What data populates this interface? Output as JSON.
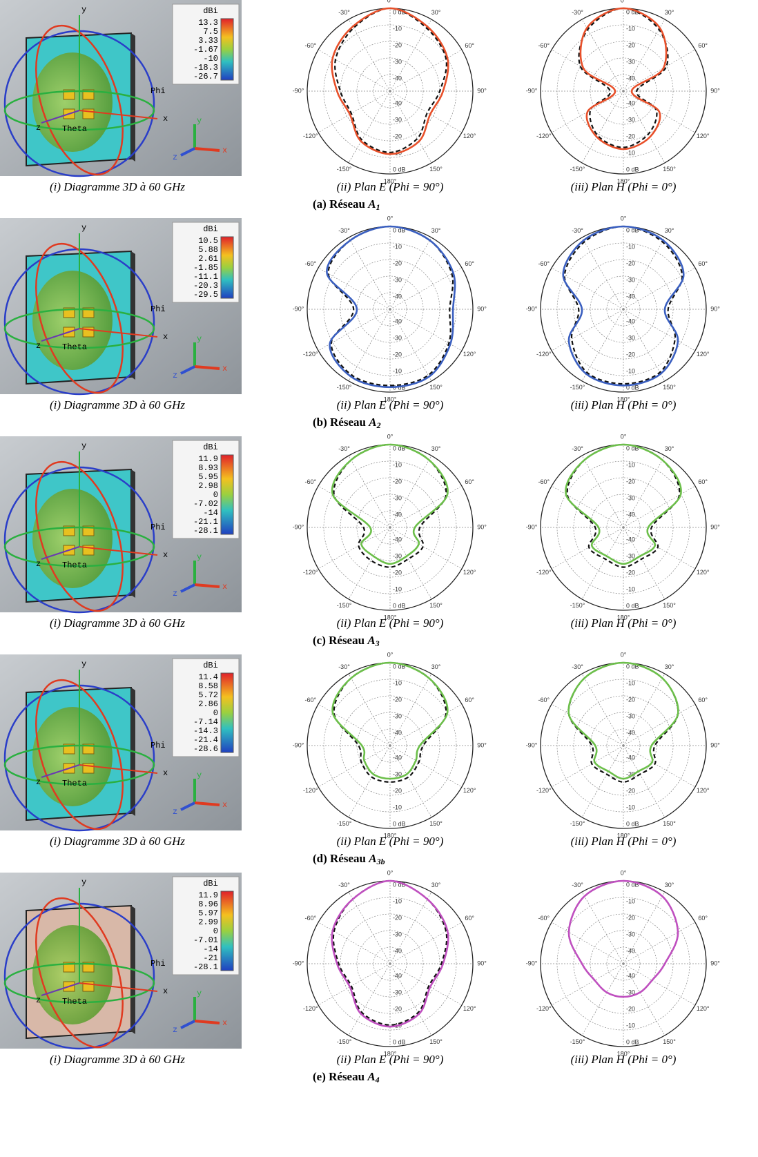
{
  "captions": [
    "(i) Diagramme 3D à 60 GHz",
    "(ii) Plan E (Phi = 90°)",
    "(iii) Plan H (Phi = 0°)"
  ],
  "colorbar_unit": "dBi",
  "axis_labels": {
    "x": "x",
    "y": "y",
    "z": "z",
    "phi": "Phi",
    "theta": "Theta"
  },
  "polar": {
    "rlim": [
      -50,
      0
    ],
    "rticks": [
      {
        "value": 0,
        "label": "0 dB"
      },
      -10,
      -20,
      -30,
      -40
    ],
    "angle_ticks": [
      {
        "value": 0,
        "label": "0°"
      },
      {
        "value": 30,
        "label": "30°"
      },
      {
        "value": 60,
        "label": "60°"
      },
      {
        "value": 90,
        "label": "90°"
      },
      {
        "value": 120,
        "label": "120°"
      },
      {
        "value": 150,
        "label": "150°"
      },
      {
        "value": 180,
        "label": "180°"
      },
      {
        "value": 210,
        "label": "-150°"
      },
      {
        "value": 240,
        "label": "-120°"
      },
      {
        "value": 270,
        "label": "-90°"
      },
      {
        "value": 300,
        "label": "-60°"
      },
      {
        "value": 330,
        "label": "-30°"
      }
    ]
  },
  "rows": [
    {
      "letter": "(a) Réseau",
      "name": "A",
      "sub": "1",
      "plane_color": "#3fc6c8",
      "color": "#e8502a",
      "colorbar": [
        "13.3",
        "7.5",
        "3.33",
        "-1.67",
        "-10",
        "-18.3",
        "-26.7"
      ],
      "e_plane": {
        "sim": [
          0,
          -5,
          -10,
          -18,
          -22,
          -15,
          -12,
          -15,
          -22,
          -18,
          -10,
          -5
        ],
        "meas": [
          0,
          -6,
          -11,
          -20,
          -24,
          -17,
          -13,
          -16,
          -23,
          -20,
          -12,
          -6
        ]
      },
      "h_plane": {
        "sim": [
          0,
          -6,
          -22,
          -45,
          -25,
          -18,
          -15,
          -18,
          -25,
          -45,
          -22,
          -6
        ],
        "meas": [
          0,
          -7,
          -20,
          -42,
          -27,
          -20,
          -16,
          -19,
          -27,
          -42,
          -20,
          -7
        ]
      }
    },
    {
      "letter": "(b) Réseau",
      "name": "A",
      "sub": "2",
      "plane_color": "#3fc6c8",
      "color": "#3a5fc0",
      "colorbar": [
        "10.5",
        "5.88",
        "2.61",
        "-1.85",
        "-11.1",
        "-20.3",
        "-29.5"
      ],
      "e_plane": {
        "sim": [
          0,
          -2,
          -6,
          -12,
          -8,
          -3,
          -3,
          -3,
          -8,
          -30,
          -6,
          -2
        ],
        "meas": [
          0,
          -2,
          -7,
          -14,
          -9,
          -4,
          -4,
          -4,
          -9,
          -28,
          -7,
          -2
        ]
      },
      "h_plane": {
        "sim": [
          0,
          -2,
          -8,
          -25,
          -12,
          -5,
          -4,
          -5,
          -12,
          -25,
          -8,
          -2
        ],
        "meas": [
          0,
          -3,
          -9,
          -23,
          -14,
          -6,
          -5,
          -6,
          -14,
          -23,
          -9,
          -3
        ]
      }
    },
    {
      "letter": "(c) Réseau",
      "name": "A",
      "sub": "3",
      "plane_color": "#3fc6c8",
      "color": "#6cbf4a",
      "colorbar": [
        "11.9",
        "8.93",
        "5.95",
        "2.98",
        "0",
        "-7.02",
        "-14",
        "-21.1",
        "-28.1"
      ],
      "e_plane": {
        "sim": [
          0,
          -3,
          -10,
          -35,
          -30,
          -30,
          -28,
          -30,
          -30,
          -38,
          -10,
          -3
        ],
        "meas": [
          0,
          -3,
          -11,
          -32,
          -27,
          -28,
          -26,
          -27,
          -28,
          -34,
          -11,
          -3
        ]
      },
      "h_plane": {
        "sim": [
          0,
          -3,
          -10,
          -35,
          -28,
          -30,
          -28,
          -30,
          -28,
          -35,
          -10,
          -3
        ],
        "meas": [
          0,
          -3,
          -11,
          -33,
          -26,
          -28,
          -26,
          -28,
          -26,
          -33,
          -11,
          -3
        ]
      }
    },
    {
      "letter": "(d) Réseau",
      "name": "A",
      "sub": "3b",
      "plane_color": "#3fc6c8",
      "color": "#6cbf4a",
      "colorbar": [
        "11.4",
        "8.58",
        "5.72",
        "2.86",
        "0",
        "-7.14",
        "-14.3",
        "-21.4",
        "-28.6"
      ],
      "e_plane": {
        "sim": [
          0,
          -3,
          -10,
          -32,
          -32,
          -30,
          -30,
          -30,
          -32,
          -33,
          -10,
          -3
        ],
        "meas": [
          0,
          -3,
          -11,
          -30,
          -30,
          -28,
          -28,
          -28,
          -30,
          -31,
          -11,
          -3
        ]
      },
      "h_plane": {
        "sim": [
          0,
          -3,
          -12,
          -33,
          -30,
          -32,
          -30,
          -32,
          -30,
          -33,
          -12,
          -3
        ],
        "meas": [
          0,
          -3,
          -12,
          -31,
          -28,
          -30,
          -28,
          -30,
          -28,
          -31,
          -12,
          -3
        ]
      }
    },
    {
      "letter": "(e) Réseau",
      "name": "A",
      "sub": "4",
      "plane_color": "#d8b8a8",
      "color": "#c050c0",
      "colorbar": [
        "11.9",
        "8.96",
        "5.97",
        "2.99",
        "0",
        "-7.01",
        "-14",
        "-21",
        "-28.1"
      ],
      "e_plane": {
        "sim": [
          0,
          -5,
          -10,
          -18,
          -22,
          -15,
          -12,
          -15,
          -22,
          -18,
          -10,
          -5
        ],
        "meas": [
          0,
          -5,
          -11,
          -19,
          -23,
          -16,
          -13,
          -16,
          -23,
          -19,
          -11,
          -5
        ]
      },
      "h_plane": {
        "sim": [
          0,
          -3,
          -12,
          -25,
          -30,
          -30,
          -30,
          -30,
          -30,
          -25,
          -12,
          -3
        ],
        "meas": [
          0,
          -3,
          -12,
          -25,
          -30,
          -30,
          -30,
          -30,
          -30,
          -25,
          -12,
          -3
        ]
      }
    }
  ]
}
